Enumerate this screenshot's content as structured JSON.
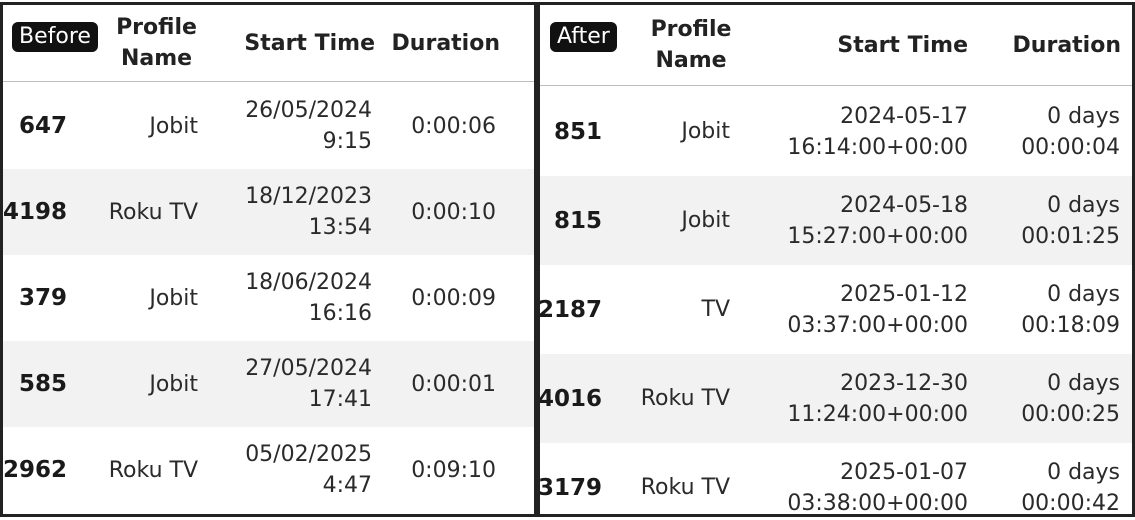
{
  "before": {
    "badge": "Before",
    "columns": [
      "",
      "Profile\nName",
      "Start Time",
      "Duration"
    ],
    "rows": [
      {
        "index": "647",
        "profile": "Jobit",
        "start": "26/05/2024\n9:15",
        "duration": "0:00:06"
      },
      {
        "index": "4198",
        "profile": "Roku TV",
        "start": "18/12/2023\n13:54",
        "duration": "0:00:10"
      },
      {
        "index": "379",
        "profile": "Jobit",
        "start": "18/06/2024\n16:16",
        "duration": "0:00:09"
      },
      {
        "index": "585",
        "profile": "Jobit",
        "start": "27/05/2024\n17:41",
        "duration": "0:00:01"
      },
      {
        "index": "2962",
        "profile": "Roku TV",
        "start": "05/02/2025\n4:47",
        "duration": "0:09:10"
      }
    ]
  },
  "after": {
    "badge": "After",
    "columns": [
      "",
      "Profile\nName",
      "Start Time",
      "Duration"
    ],
    "rows": [
      {
        "index": "851",
        "profile": "Jobit",
        "start": "2024-05-17\n16:14:00+00:00",
        "duration": "0 days\n00:00:04"
      },
      {
        "index": "815",
        "profile": "Jobit",
        "start": "2024-05-18\n15:27:00+00:00",
        "duration": "0 days\n00:01:25"
      },
      {
        "index": "2187",
        "profile": "TV",
        "start": "2025-01-12\n03:37:00+00:00",
        "duration": "0 days\n00:18:09"
      },
      {
        "index": "4016",
        "profile": "Roku TV",
        "start": "2023-12-30\n11:24:00+00:00",
        "duration": "0 days\n00:00:25"
      },
      {
        "index": "3179",
        "profile": "Roku TV",
        "start": "2025-01-07\n03:38:00+00:00",
        "duration": "0 days\n00:00:42"
      }
    ]
  }
}
